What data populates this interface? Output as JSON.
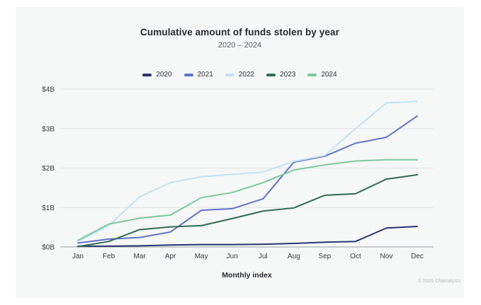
{
  "page": {
    "footer_credit": "© 2025 Chainalysis"
  },
  "chart_data": {
    "type": "line",
    "title": "Cumulative amount of funds stolen by year",
    "subtitle": "2020 – 2024",
    "xlabel": "Monthly index",
    "ylabel": "",
    "categories": [
      "Jan",
      "Feb",
      "Mar",
      "Apr",
      "May",
      "Jun",
      "Jul",
      "Aug",
      "Sep",
      "Oct",
      "Nov",
      "Dec"
    ],
    "y_ticks": [
      "$0B",
      "$1B",
      "$2B",
      "$3B",
      "$4B"
    ],
    "ylim": [
      0,
      4
    ],
    "grid": "horizontal",
    "legend_position": "top",
    "series": [
      {
        "name": "2020",
        "color": "#283571",
        "values": [
          0.02,
          0.02,
          0.03,
          0.05,
          0.06,
          0.06,
          0.07,
          0.09,
          0.12,
          0.14,
          0.48,
          0.52
        ]
      },
      {
        "name": "2021",
        "color": "#5e73c7",
        "values": [
          0.1,
          0.2,
          0.24,
          0.38,
          0.93,
          0.97,
          1.22,
          2.15,
          2.3,
          2.63,
          2.78,
          3.32
        ]
      },
      {
        "name": "2022",
        "color": "#c3e2f4",
        "values": [
          0.14,
          0.54,
          1.27,
          1.63,
          1.78,
          1.84,
          1.9,
          2.17,
          2.32,
          3.0,
          3.65,
          3.69
        ]
      },
      {
        "name": "2023",
        "color": "#2f6d51",
        "values": [
          0.01,
          0.14,
          0.44,
          0.51,
          0.54,
          0.72,
          0.91,
          0.99,
          1.31,
          1.35,
          1.72,
          1.83
        ]
      },
      {
        "name": "2024",
        "color": "#7cc89e",
        "values": [
          0.17,
          0.58,
          0.73,
          0.81,
          1.25,
          1.38,
          1.63,
          1.95,
          2.08,
          2.18,
          2.21,
          2.21
        ]
      }
    ],
    "style": {
      "grid_color": "#e3e4e5",
      "axis_color": "#9aa0a5",
      "tick_label_color": "#35393e",
      "line_width": 2
    }
  }
}
